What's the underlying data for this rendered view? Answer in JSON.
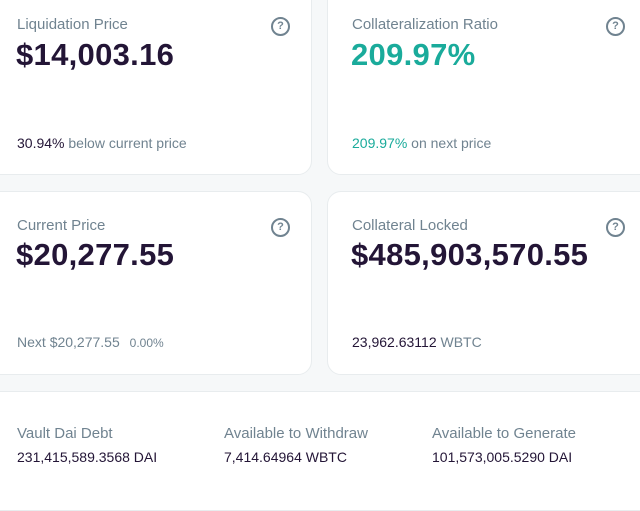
{
  "liquidation": {
    "label": "Liquidation Price",
    "value": "$14,003.16",
    "percent": "30.94%",
    "percent_text": "below current price"
  },
  "ratio": {
    "label": "Collateralization Ratio",
    "value": "209.97%",
    "next_value": "209.97%",
    "next_text": "on next price"
  },
  "current_price": {
    "label": "Current Price",
    "value": "$20,277.55",
    "next_label": "Next",
    "next_value": "$20,277.55",
    "change": "0.00%"
  },
  "collateral": {
    "label": "Collateral Locked",
    "value": "$485,903,570.55",
    "amount": "23,962.63112",
    "token": "WBTC"
  },
  "summary": {
    "debt_label": "Vault Dai Debt",
    "debt_value": "231,415,589.3568 DAI",
    "withdraw_label": "Available to Withdraw",
    "withdraw_value": "7,414.64964 WBTC",
    "generate_label": "Available to Generate",
    "generate_value": "101,573,005.5290 DAI"
  },
  "icons": {
    "help": "?"
  },
  "colors": {
    "accent_green": "#1aab9b",
    "text_primary": "#231536",
    "text_muted": "#708390"
  }
}
